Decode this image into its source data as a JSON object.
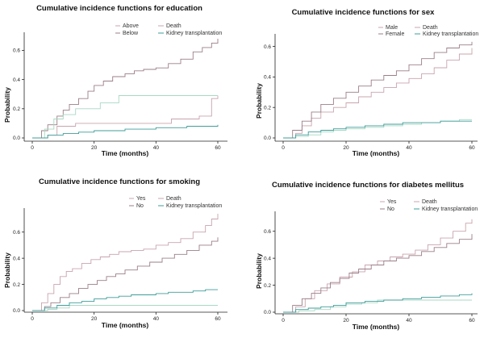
{
  "legend_labels": {
    "death": "Death",
    "kidney": "Kidney transplantation"
  },
  "colors": {
    "death_a": "#c8a4ae",
    "death_b": "#9a7f88",
    "kidney_a": "#a8d8c4",
    "kidney_b": "#3f9d9a",
    "axis": "#222222"
  },
  "chart_data": [
    {
      "type": "line",
      "title": "Cumulative incidence functions for education",
      "xlabel": "Time (months)",
      "ylabel": "Probability",
      "xlim": [
        0,
        60
      ],
      "ylim": [
        0,
        0.68
      ],
      "xticks": [
        "0",
        "20",
        "40",
        "60"
      ],
      "yticks": [
        "0.0",
        "0.2",
        "0.4",
        "0.6"
      ],
      "yticks_values": [
        0,
        0.2,
        0.4,
        0.6
      ],
      "groups": [
        "Above",
        "Below"
      ],
      "series": [
        {
          "group": "Above",
          "event": "Death",
          "color": "death_a",
          "x": [
            0,
            5,
            8,
            14,
            20,
            28,
            35,
            45,
            50,
            54,
            58,
            60
          ],
          "y": [
            0,
            0.02,
            0.08,
            0.1,
            0.1,
            0.1,
            0.1,
            0.13,
            0.13,
            0.15,
            0.27,
            0.29
          ]
        },
        {
          "group": "Below",
          "event": "Death",
          "color": "death_b",
          "x": [
            0,
            3,
            5,
            8,
            10,
            12,
            15,
            18,
            20,
            23,
            26,
            30,
            33,
            36,
            40,
            44,
            48,
            52,
            55,
            58,
            60
          ],
          "y": [
            0,
            0.05,
            0.09,
            0.15,
            0.19,
            0.23,
            0.27,
            0.32,
            0.36,
            0.39,
            0.42,
            0.44,
            0.46,
            0.47,
            0.48,
            0.51,
            0.54,
            0.59,
            0.62,
            0.65,
            0.68
          ]
        },
        {
          "group": "Above",
          "event": "Kidney transplantation",
          "color": "kidney_a",
          "x": [
            0,
            4,
            7,
            10,
            14,
            18,
            22,
            28,
            60
          ],
          "y": [
            0,
            0.06,
            0.13,
            0.16,
            0.2,
            0.2,
            0.24,
            0.29,
            0.29
          ]
        },
        {
          "group": "Below",
          "event": "Kidney transplantation",
          "color": "kidney_b",
          "x": [
            0,
            5,
            10,
            15,
            20,
            25,
            30,
            35,
            40,
            45,
            50,
            55,
            60
          ],
          "y": [
            0,
            0.02,
            0.03,
            0.04,
            0.05,
            0.05,
            0.06,
            0.06,
            0.07,
            0.07,
            0.08,
            0.08,
            0.09
          ]
        }
      ]
    },
    {
      "type": "line",
      "title": "Cumulative incidence functions for sex",
      "xlabel": "Time (months)",
      "ylabel": "Probability",
      "xlim": [
        0,
        60
      ],
      "ylim": [
        0,
        0.64
      ],
      "xticks": [
        "0",
        "20",
        "40",
        "60"
      ],
      "yticks": [
        "0.0",
        "0.2",
        "0.4",
        "0.6"
      ],
      "yticks_values": [
        0,
        0.2,
        0.4,
        0.6
      ],
      "groups": [
        "Male",
        "Female"
      ],
      "series": [
        {
          "group": "Male",
          "event": "Death",
          "color": "death_a",
          "x": [
            0,
            4,
            6,
            9,
            12,
            16,
            20,
            24,
            28,
            32,
            36,
            40,
            44,
            48,
            52,
            56,
            60
          ],
          "y": [
            0,
            0.03,
            0.08,
            0.13,
            0.17,
            0.2,
            0.23,
            0.27,
            0.3,
            0.33,
            0.36,
            0.39,
            0.42,
            0.46,
            0.51,
            0.55,
            0.59
          ]
        },
        {
          "group": "Female",
          "event": "Death",
          "color": "death_b",
          "x": [
            0,
            3,
            6,
            9,
            12,
            16,
            20,
            24,
            28,
            32,
            36,
            40,
            44,
            48,
            52,
            56,
            60
          ],
          "y": [
            0,
            0.05,
            0.11,
            0.17,
            0.22,
            0.26,
            0.3,
            0.34,
            0.38,
            0.41,
            0.44,
            0.48,
            0.52,
            0.56,
            0.59,
            0.61,
            0.63
          ]
        },
        {
          "group": "Male",
          "event": "Kidney transplantation",
          "color": "kidney_a",
          "x": [
            0,
            4,
            8,
            12,
            16,
            20,
            26,
            32,
            38,
            44,
            50,
            56,
            60
          ],
          "y": [
            0,
            0.01,
            0.02,
            0.04,
            0.05,
            0.06,
            0.07,
            0.08,
            0.09,
            0.1,
            0.11,
            0.12,
            0.12
          ]
        },
        {
          "group": "Female",
          "event": "Kidney transplantation",
          "color": "kidney_b",
          "x": [
            0,
            4,
            8,
            12,
            16,
            20,
            26,
            32,
            38,
            44,
            50,
            56,
            60
          ],
          "y": [
            0,
            0.02,
            0.04,
            0.05,
            0.06,
            0.07,
            0.08,
            0.09,
            0.1,
            0.1,
            0.11,
            0.11,
            0.11
          ]
        }
      ]
    },
    {
      "type": "line",
      "title": "Cumulative incidence functions for smoking",
      "xlabel": "Time (months)",
      "ylabel": "Probability",
      "xlim": [
        0,
        60
      ],
      "ylim": [
        0,
        0.74
      ],
      "xticks": [
        "0",
        "20",
        "40",
        "60"
      ],
      "yticks": [
        "0.0",
        "0.2",
        "0.4",
        "0.6"
      ],
      "yticks_values": [
        0,
        0.2,
        0.4,
        0.6
      ],
      "groups": [
        "Yes",
        "No"
      ],
      "series": [
        {
          "group": "Yes",
          "event": "Death",
          "color": "death_a",
          "x": [
            0,
            3,
            5,
            7,
            9,
            11,
            13,
            16,
            19,
            22,
            25,
            28,
            32,
            36,
            40,
            44,
            48,
            52,
            56,
            58,
            60
          ],
          "y": [
            0,
            0.06,
            0.13,
            0.2,
            0.26,
            0.3,
            0.32,
            0.36,
            0.39,
            0.41,
            0.43,
            0.45,
            0.46,
            0.47,
            0.5,
            0.52,
            0.55,
            0.6,
            0.65,
            0.7,
            0.74
          ]
        },
        {
          "group": "No",
          "event": "Death",
          "color": "death_b",
          "x": [
            0,
            4,
            6,
            9,
            12,
            15,
            18,
            21,
            24,
            27,
            30,
            34,
            38,
            42,
            46,
            50,
            54,
            58,
            60
          ],
          "y": [
            0,
            0.03,
            0.06,
            0.1,
            0.13,
            0.17,
            0.2,
            0.23,
            0.26,
            0.28,
            0.31,
            0.34,
            0.37,
            0.4,
            0.43,
            0.46,
            0.5,
            0.53,
            0.56
          ]
        },
        {
          "group": "Yes",
          "event": "Kidney transplantation",
          "color": "kidney_a",
          "x": [
            0,
            5,
            8,
            12,
            60
          ],
          "y": [
            0,
            0.01,
            0.02,
            0.04,
            0.04
          ]
        },
        {
          "group": "No",
          "event": "Kidney transplantation",
          "color": "kidney_b",
          "x": [
            0,
            4,
            8,
            12,
            16,
            20,
            24,
            28,
            32,
            36,
            40,
            44,
            48,
            52,
            56,
            60
          ],
          "y": [
            0,
            0.02,
            0.04,
            0.06,
            0.07,
            0.09,
            0.1,
            0.11,
            0.12,
            0.12,
            0.13,
            0.14,
            0.14,
            0.15,
            0.16,
            0.16
          ]
        }
      ]
    },
    {
      "type": "line",
      "title": "Cumulative incidence functions for diabetes mellitus",
      "xlabel": "Time (months)",
      "ylabel": "Probability",
      "xlim": [
        0,
        60
      ],
      "ylim": [
        0,
        0.7
      ],
      "xticks": [
        "0",
        "20",
        "40",
        "60"
      ],
      "yticks": [
        "0.0",
        "0.2",
        "0.4",
        "0.6"
      ],
      "yticks_values": [
        0,
        0.2,
        0.4,
        0.6
      ],
      "groups": [
        "Yes",
        "No"
      ],
      "series": [
        {
          "group": "Yes",
          "event": "Death",
          "color": "death_a",
          "x": [
            0,
            4,
            7,
            10,
            14,
            18,
            22,
            26,
            30,
            34,
            38,
            42,
            46,
            50,
            54,
            58,
            60
          ],
          "y": [
            0,
            0.04,
            0.1,
            0.16,
            0.21,
            0.26,
            0.3,
            0.35,
            0.38,
            0.41,
            0.43,
            0.46,
            0.5,
            0.55,
            0.6,
            0.66,
            0.69
          ]
        },
        {
          "group": "No",
          "event": "Death",
          "color": "death_b",
          "x": [
            0,
            3,
            6,
            9,
            12,
            15,
            18,
            21,
            24,
            28,
            32,
            36,
            40,
            44,
            48,
            52,
            56,
            60
          ],
          "y": [
            0,
            0.05,
            0.1,
            0.14,
            0.18,
            0.22,
            0.25,
            0.29,
            0.32,
            0.35,
            0.38,
            0.4,
            0.42,
            0.45,
            0.48,
            0.51,
            0.54,
            0.58
          ]
        },
        {
          "group": "Yes",
          "event": "Kidney transplantation",
          "color": "kidney_a",
          "x": [
            0,
            5,
            10,
            15,
            20,
            25,
            30,
            60
          ],
          "y": [
            0,
            0.01,
            0.02,
            0.04,
            0.06,
            0.07,
            0.09,
            0.09
          ]
        },
        {
          "group": "No",
          "event": "Kidney transplantation",
          "color": "kidney_b",
          "x": [
            0,
            4,
            8,
            12,
            16,
            20,
            26,
            32,
            38,
            44,
            50,
            56,
            60
          ],
          "y": [
            0,
            0.02,
            0.03,
            0.04,
            0.05,
            0.07,
            0.08,
            0.09,
            0.1,
            0.11,
            0.12,
            0.13,
            0.14
          ]
        }
      ]
    }
  ]
}
